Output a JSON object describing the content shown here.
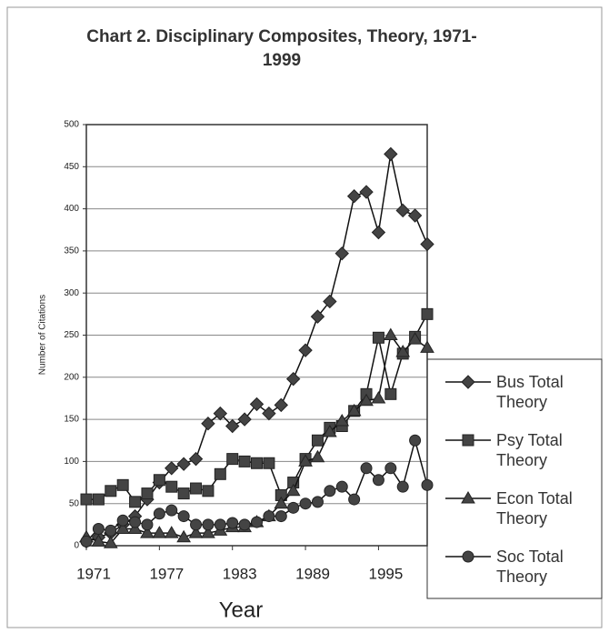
{
  "chart_data": {
    "type": "line",
    "title": "Chart 2.  Disciplinary Composites, Theory, 1971-1999",
    "xlabel": "Year",
    "ylabel": "Number of Citations",
    "x": [
      1971,
      1972,
      1973,
      1974,
      1975,
      1976,
      1977,
      1978,
      1979,
      1980,
      1981,
      1982,
      1983,
      1984,
      1985,
      1986,
      1987,
      1988,
      1989,
      1990,
      1991,
      1992,
      1993,
      1994,
      1995,
      1996,
      1997,
      1998,
      1999
    ],
    "xlim": [
      1971,
      1999
    ],
    "xticks": [
      1971,
      1977,
      1983,
      1989,
      1995
    ],
    "ylim": [
      0,
      500
    ],
    "yticks": [
      0,
      50,
      100,
      150,
      200,
      250,
      300,
      350,
      400,
      450,
      500
    ],
    "grid": true,
    "legend": "right",
    "series": [
      {
        "name": "Bus Total Theory",
        "color": "#444444",
        "marker": "diamond",
        "values": [
          5,
          10,
          15,
          25,
          35,
          55,
          75,
          92,
          97,
          103,
          145,
          157,
          142,
          150,
          168,
          157,
          167,
          198,
          232,
          272,
          290,
          347,
          415,
          420,
          372,
          465,
          398,
          392,
          358
        ]
      },
      {
        "name": "Psy Total Theory",
        "color": "#444444",
        "marker": "square",
        "values": [
          55,
          55,
          65,
          72,
          52,
          62,
          78,
          70,
          62,
          68,
          65,
          85,
          103,
          100,
          98,
          98,
          60,
          75,
          103,
          125,
          140,
          142,
          160,
          180,
          247,
          180,
          228,
          248,
          275
        ]
      },
      {
        "name": "Econ Total Theory",
        "color": "#444444",
        "marker": "triangle",
        "values": [
          10,
          5,
          3,
          20,
          20,
          15,
          15,
          15,
          10,
          15,
          15,
          18,
          22,
          22,
          28,
          35,
          50,
          65,
          100,
          105,
          135,
          148,
          160,
          172,
          175,
          250,
          230,
          245,
          235
        ]
      },
      {
        "name": "Soc Total Theory",
        "color": "#444444",
        "marker": "circle",
        "values": [
          5,
          20,
          18,
          30,
          28,
          25,
          38,
          42,
          35,
          25,
          25,
          25,
          27,
          25,
          28,
          35,
          35,
          45,
          50,
          52,
          65,
          70,
          55,
          92,
          78,
          92,
          70,
          125,
          72
        ]
      }
    ]
  }
}
